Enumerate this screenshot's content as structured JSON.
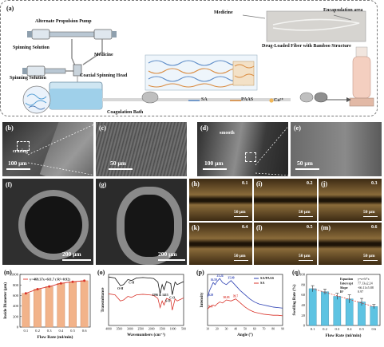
{
  "panel_a": {
    "letter": "(a)",
    "labels": {
      "pump": "Alternate Propulsion Pump",
      "spinning1": "Spinning Solution",
      "spinning2": "Spinning Solution",
      "medicine": "Medicine",
      "coaxial": "Coaxial Spinning Head",
      "bath": "Coagulation Bath",
      "medicine2": "Medicine",
      "encapsulation": "Encapsulation area",
      "fiber_caption": "Drug-Loaded Fiber with Bamboo Structure",
      "legend_sa": "SA",
      "legend_paas": "PAAS",
      "legend_ca": "Ca²⁺"
    }
  },
  "sem_panels": [
    {
      "letter": "(b)",
      "scale": "100 μm",
      "note": "crazing"
    },
    {
      "letter": "(c)",
      "scale": "50 μm"
    },
    {
      "letter": "(d)",
      "scale": "100 μm",
      "note": "smooth"
    },
    {
      "letter": "(e)",
      "scale": "50 μm"
    },
    {
      "letter": "(f)",
      "scale": "200 μm"
    },
    {
      "letter": "(g)",
      "scale": "200 μm"
    }
  ],
  "optical_panels": [
    {
      "letter": "(h)",
      "rate": "0.1",
      "scale": "50 μm"
    },
    {
      "letter": "(i)",
      "rate": "0.2",
      "scale": "50 μm"
    },
    {
      "letter": "(j)",
      "rate": "0.3",
      "scale": "50 μm"
    },
    {
      "letter": "(k)",
      "rate": "0.4",
      "scale": "50 μm"
    },
    {
      "letter": "(l)",
      "rate": "0.5",
      "scale": "50 μm"
    },
    {
      "letter": "(m)",
      "rate": "0.6",
      "scale": "50 μm"
    }
  ],
  "chart_data": [
    {
      "panel": "(n)",
      "type": "bar",
      "categories": [
        "0.1",
        "0.2",
        "0.3",
        "0.4",
        "0.5",
        "0.6"
      ],
      "values": [
        640,
        720,
        770,
        830,
        860,
        880
      ],
      "equation": "y=469.37x+611.7   ( R²=0.92)",
      "xlabel": "Flow Rate (ml/min)",
      "ylabel": "Inside Diameter (μm)",
      "ylim": [
        0,
        1000
      ],
      "yticks": [
        0,
        200,
        400,
        600,
        800,
        1000
      ],
      "colors": {
        "bar": "#f2b38a",
        "line": "#d9342b"
      }
    },
    {
      "panel": "(o)",
      "type": "line",
      "xlabel": "Wavenumbers (cm⁻¹)",
      "ylabel": "Transmittance",
      "xticks": [
        "4000",
        "3500",
        "3000",
        "2500",
        "2000",
        "1500",
        "1000",
        "500"
      ],
      "xlim": [
        4000,
        500
      ],
      "annotations": [
        "O-H",
        "C-H",
        "C-O",
        "S-O",
        "1596 & 1413"
      ],
      "series": [
        {
          "name": "",
          "color": "#111111",
          "x": [
            4000,
            3700,
            3450,
            3300,
            3100,
            2930,
            2700,
            2400,
            2100,
            1900,
            1700,
            1596,
            1500,
            1413,
            1300,
            1100,
            1030,
            900,
            800,
            600,
            500
          ],
          "values": [
            0.95,
            0.93,
            0.78,
            0.8,
            0.9,
            0.88,
            0.93,
            0.94,
            0.93,
            0.92,
            0.85,
            0.62,
            0.8,
            0.7,
            0.86,
            0.82,
            0.6,
            0.85,
            0.8,
            0.84,
            0.86
          ]
        },
        {
          "name": "",
          "color": "#d9342b",
          "x": [
            4000,
            3700,
            3450,
            3300,
            3100,
            2930,
            2700,
            2400,
            2100,
            1900,
            1700,
            1596,
            1500,
            1413,
            1300,
            1100,
            1030,
            900,
            800,
            600,
            500
          ],
          "values": [
            0.62,
            0.6,
            0.48,
            0.5,
            0.57,
            0.55,
            0.6,
            0.61,
            0.6,
            0.59,
            0.53,
            0.35,
            0.48,
            0.4,
            0.53,
            0.5,
            0.3,
            0.52,
            0.48,
            0.52,
            0.54
          ]
        }
      ]
    },
    {
      "panel": "(p)",
      "type": "line",
      "xlabel": "Angle (°)",
      "ylabel": "Intensity",
      "xticks": [
        "10",
        "20",
        "30",
        "40",
        "50",
        "60",
        "70",
        "80",
        "90"
      ],
      "xlim": [
        10,
        90
      ],
      "legend": [
        "SA/PAAS",
        "SA"
      ],
      "peak_labels": [
        {
          "text": "16.59",
          "x": 16.59,
          "series": 0
        },
        {
          "text": "23.24",
          "x": 23.24,
          "series": 0
        },
        {
          "text": "35.09",
          "x": 35.09,
          "series": 0
        },
        {
          "text": "9.29",
          "x": 9.29,
          "series": 0
        },
        {
          "text": "9.47",
          "x": 9.47,
          "series": 1
        },
        {
          "text": "30.03",
          "x": 30.03,
          "series": 1
        },
        {
          "text": "39.7",
          "x": 39.7,
          "series": 1
        }
      ],
      "series": [
        {
          "name": "SA/PAAS",
          "color": "#2b3fb3",
          "x": [
            8,
            12,
            16,
            18,
            20,
            23,
            26,
            30,
            35,
            40,
            45,
            50,
            55,
            60,
            65,
            70,
            75,
            80,
            85,
            90
          ],
          "values": [
            55,
            68,
            84,
            80,
            86,
            92,
            84,
            80,
            88,
            78,
            68,
            60,
            52,
            46,
            42,
            40,
            38,
            36,
            35,
            34
          ]
        },
        {
          "name": "SA",
          "color": "#d9342b",
          "x": [
            8,
            12,
            16,
            18,
            20,
            23,
            26,
            30,
            35,
            40,
            45,
            50,
            55,
            60,
            65,
            70,
            75,
            80,
            85,
            90
          ],
          "values": [
            32,
            36,
            40,
            38,
            42,
            46,
            44,
            50,
            48,
            52,
            44,
            36,
            30,
            26,
            24,
            22,
            21,
            20,
            20,
            19
          ]
        }
      ]
    },
    {
      "panel": "(q)",
      "type": "bar",
      "categories": [
        "0.1",
        "0.2",
        "0.3",
        "0.4",
        "0.5",
        "0.6"
      ],
      "values": [
        72,
        66,
        57,
        52,
        46,
        37
      ],
      "errors": [
        6,
        5,
        6,
        8,
        7,
        4
      ],
      "xlabel": "Flow Rate (ml/min)",
      "ylabel": "Swelling Rate (%)",
      "ylim": [
        0,
        100
      ],
      "yticks": [
        0,
        20,
        40,
        60,
        80,
        100
      ],
      "fit_table": [
        [
          "Equation",
          "y=a+b*x"
        ],
        [
          "Intercept",
          "77.13±2.24"
        ],
        [
          "Slope",
          "-66.11±5.88"
        ],
        [
          "R²",
          "0.97"
        ]
      ],
      "colors": {
        "bar": "#5ec3e2",
        "line": "#d9342b"
      }
    }
  ]
}
